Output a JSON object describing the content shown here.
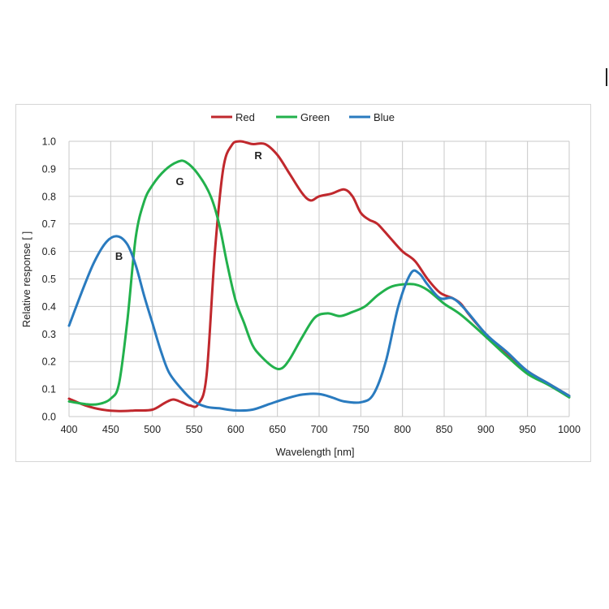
{
  "chart_data": {
    "type": "line",
    "xlabel": "Wavelength [nm]",
    "ylabel": "Relative response [ ]",
    "xlim": [
      400,
      1000
    ],
    "ylim": [
      0,
      1.0
    ],
    "x_ticks": [
      400,
      450,
      500,
      550,
      600,
      650,
      700,
      750,
      800,
      850,
      900,
      950,
      1000
    ],
    "y_ticks": [
      "0.0",
      "0.1",
      "0.2",
      "0.3",
      "0.4",
      "0.5",
      "0.6",
      "0.7",
      "0.8",
      "0.9",
      "1.0"
    ],
    "grid": true,
    "legend_position": "top",
    "series": [
      {
        "name": "Red",
        "color": "#c0282d",
        "points": [
          [
            400,
            0.065
          ],
          [
            420,
            0.04
          ],
          [
            440,
            0.025
          ],
          [
            460,
            0.02
          ],
          [
            480,
            0.022
          ],
          [
            500,
            0.025
          ],
          [
            515,
            0.05
          ],
          [
            525,
            0.062
          ],
          [
            535,
            0.052
          ],
          [
            545,
            0.04
          ],
          [
            555,
            0.045
          ],
          [
            565,
            0.15
          ],
          [
            575,
            0.6
          ],
          [
            585,
            0.9
          ],
          [
            595,
            0.985
          ],
          [
            605,
            1.0
          ],
          [
            620,
            0.99
          ],
          [
            635,
            0.99
          ],
          [
            650,
            0.95
          ],
          [
            665,
            0.88
          ],
          [
            680,
            0.81
          ],
          [
            690,
            0.785
          ],
          [
            700,
            0.8
          ],
          [
            715,
            0.81
          ],
          [
            730,
            0.825
          ],
          [
            740,
            0.8
          ],
          [
            750,
            0.74
          ],
          [
            760,
            0.715
          ],
          [
            770,
            0.7
          ],
          [
            785,
            0.65
          ],
          [
            800,
            0.6
          ],
          [
            815,
            0.565
          ],
          [
            830,
            0.5
          ],
          [
            845,
            0.45
          ],
          [
            860,
            0.43
          ],
          [
            870,
            0.41
          ],
          [
            880,
            0.37
          ],
          [
            900,
            0.3
          ],
          [
            925,
            0.23
          ],
          [
            950,
            0.165
          ],
          [
            975,
            0.12
          ],
          [
            1000,
            0.075
          ]
        ]
      },
      {
        "name": "Green",
        "color": "#22b14c",
        "points": [
          [
            400,
            0.055
          ],
          [
            420,
            0.045
          ],
          [
            435,
            0.045
          ],
          [
            450,
            0.065
          ],
          [
            460,
            0.12
          ],
          [
            470,
            0.35
          ],
          [
            480,
            0.65
          ],
          [
            490,
            0.78
          ],
          [
            500,
            0.84
          ],
          [
            515,
            0.895
          ],
          [
            530,
            0.925
          ],
          [
            540,
            0.925
          ],
          [
            555,
            0.88
          ],
          [
            570,
            0.8
          ],
          [
            580,
            0.7
          ],
          [
            590,
            0.55
          ],
          [
            600,
            0.42
          ],
          [
            610,
            0.34
          ],
          [
            620,
            0.26
          ],
          [
            630,
            0.22
          ],
          [
            645,
            0.18
          ],
          [
            655,
            0.175
          ],
          [
            665,
            0.21
          ],
          [
            680,
            0.29
          ],
          [
            695,
            0.36
          ],
          [
            710,
            0.375
          ],
          [
            725,
            0.365
          ],
          [
            740,
            0.38
          ],
          [
            755,
            0.4
          ],
          [
            770,
            0.44
          ],
          [
            785,
            0.47
          ],
          [
            800,
            0.48
          ],
          [
            815,
            0.48
          ],
          [
            830,
            0.46
          ],
          [
            850,
            0.41
          ],
          [
            870,
            0.37
          ],
          [
            900,
            0.29
          ],
          [
            925,
            0.22
          ],
          [
            950,
            0.155
          ],
          [
            975,
            0.115
          ],
          [
            1000,
            0.07
          ]
        ]
      },
      {
        "name": "Blue",
        "color": "#2a7bbf",
        "points": [
          [
            400,
            0.33
          ],
          [
            415,
            0.45
          ],
          [
            430,
            0.56
          ],
          [
            445,
            0.635
          ],
          [
            458,
            0.655
          ],
          [
            470,
            0.625
          ],
          [
            480,
            0.55
          ],
          [
            490,
            0.44
          ],
          [
            500,
            0.34
          ],
          [
            510,
            0.24
          ],
          [
            520,
            0.16
          ],
          [
            535,
            0.1
          ],
          [
            550,
            0.055
          ],
          [
            565,
            0.035
          ],
          [
            580,
            0.03
          ],
          [
            600,
            0.022
          ],
          [
            620,
            0.025
          ],
          [
            640,
            0.045
          ],
          [
            660,
            0.065
          ],
          [
            680,
            0.08
          ],
          [
            700,
            0.082
          ],
          [
            715,
            0.07
          ],
          [
            730,
            0.055
          ],
          [
            750,
            0.052
          ],
          [
            765,
            0.08
          ],
          [
            780,
            0.2
          ],
          [
            795,
            0.4
          ],
          [
            810,
            0.52
          ],
          [
            820,
            0.52
          ],
          [
            830,
            0.48
          ],
          [
            845,
            0.43
          ],
          [
            860,
            0.43
          ],
          [
            875,
            0.39
          ],
          [
            900,
            0.3
          ],
          [
            925,
            0.235
          ],
          [
            950,
            0.165
          ],
          [
            975,
            0.12
          ],
          [
            1000,
            0.075
          ]
        ]
      }
    ],
    "annotations": [
      {
        "text": "B",
        "x": 460,
        "y": 0.57
      },
      {
        "text": "G",
        "x": 533,
        "y": 0.84
      },
      {
        "text": "R",
        "x": 627,
        "y": 0.935
      }
    ]
  }
}
